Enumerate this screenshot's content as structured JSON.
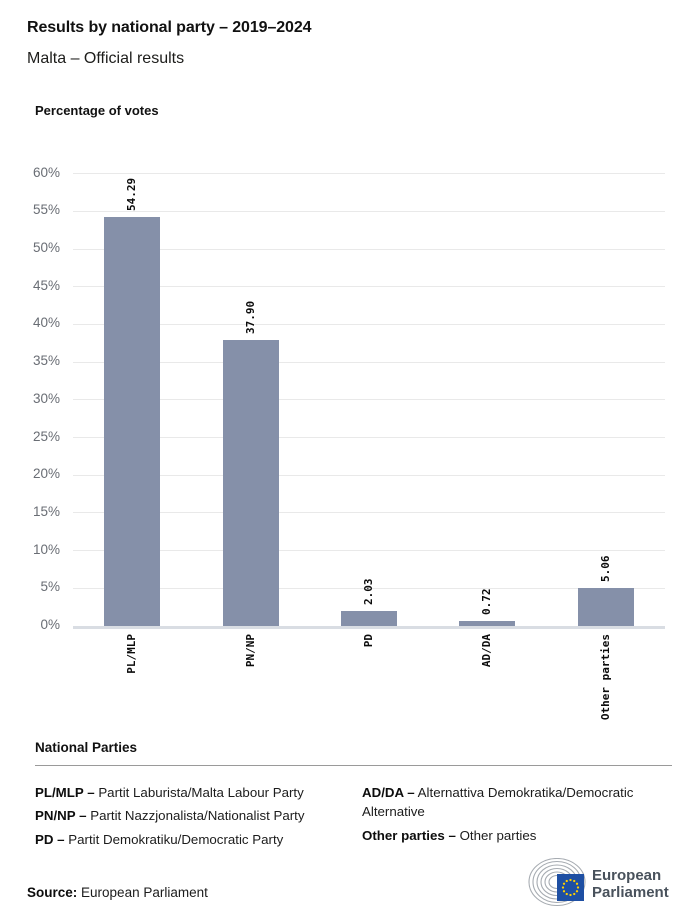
{
  "header": {
    "title": "Results by national party – 2019–2024",
    "subtitle": "Malta – Official results"
  },
  "chart_data": {
    "type": "bar",
    "title": "Percentage of votes",
    "categories": [
      "PL/MLP",
      "PN/NP",
      "PD",
      "AD/DA",
      "Other parties"
    ],
    "values": [
      54.29,
      37.9,
      2.03,
      0.72,
      5.06
    ],
    "value_labels": [
      "54.29",
      "37.90",
      "2.03",
      "0.72",
      "5.06"
    ],
    "xlabel": "",
    "ylabel": "",
    "ylim": [
      0,
      60
    ],
    "ytick_step": 5,
    "ytick_suffix": "%",
    "grid": true,
    "legend_position": "none",
    "bar_color": "#8590a9"
  },
  "legend": {
    "heading": "National Parties",
    "col1": [
      {
        "term": "PL/MLP –",
        "desc": "Partit Laburista/Malta Labour Party"
      },
      {
        "term": "PN/NP –",
        "desc": "Partit Nazzjonalista/Nationalist Party"
      },
      {
        "term": "PD –",
        "desc": "Partit Demokratiku/Democratic Party"
      }
    ],
    "col2": [
      {
        "term": "AD/DA –",
        "desc": "Alternattiva Demokratika/Democratic Alternative"
      },
      {
        "term": "Other parties –",
        "desc": "Other parties"
      }
    ]
  },
  "footer": {
    "source_label": "Source:",
    "source_value": "European Parliament",
    "logo_line1": "European",
    "logo_line2": "Parliament",
    "eu_blue": "#1e4fa3",
    "star_yellow": "#ffcf00"
  }
}
